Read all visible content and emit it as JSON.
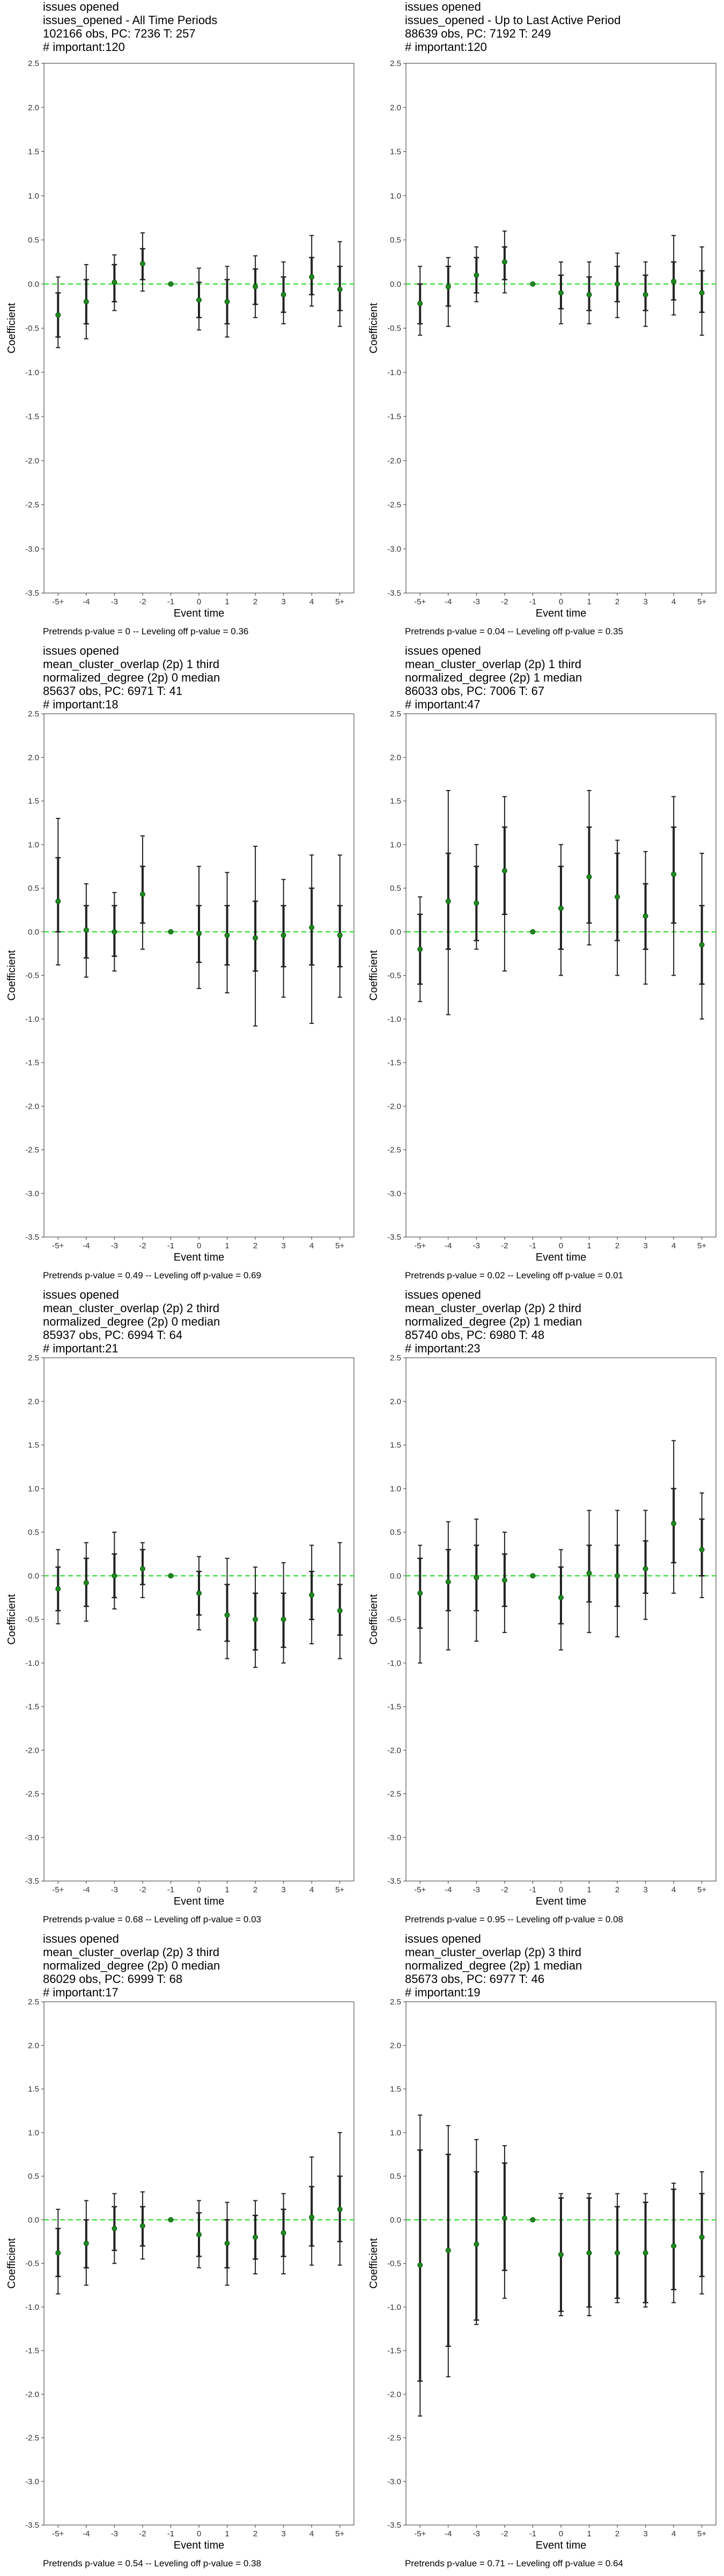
{
  "colors": {
    "zero_line": "#33dd33",
    "point": "#1f8a1f",
    "errorbar": "#222222",
    "axis": "#333333",
    "text": "#000000",
    "frame": "#555555"
  },
  "chart_data": [
    {
      "type": "scatter",
      "subtitle_lines": [
        "issues opened",
        "issues_opened - All Time Periods",
        "102166 obs, PC: 7236 T: 257",
        "# important:120"
      ],
      "xlabel": "Event time",
      "ylabel": "Coefficient",
      "ylim": [
        -3.5,
        2.5
      ],
      "yticks": [
        "2.5",
        "2.0",
        "1.5",
        "1.0",
        "0.5",
        "0.0",
        "-0.5",
        "-1.0",
        "-1.5",
        "-2.0",
        "-2.5",
        "-3.0",
        "-3.5"
      ],
      "categories": [
        "-5+",
        "-4",
        "-3",
        "-2",
        "-1",
        "0",
        "1",
        "2",
        "3",
        "4",
        "5+"
      ],
      "estimates": [
        -0.35,
        -0.2,
        0.02,
        0.23,
        0.0,
        -0.18,
        -0.2,
        -0.03,
        -0.12,
        0.08,
        -0.06
      ],
      "ci_inner": [
        [
          -0.6,
          -0.1
        ],
        [
          -0.45,
          0.05
        ],
        [
          -0.2,
          0.22
        ],
        [
          0.05,
          0.4
        ],
        [
          0.0,
          0.0
        ],
        [
          -0.38,
          0.02
        ],
        [
          -0.45,
          0.05
        ],
        [
          -0.23,
          0.17
        ],
        [
          -0.32,
          0.08
        ],
        [
          -0.12,
          0.3
        ],
        [
          -0.3,
          0.2
        ]
      ],
      "ci_outer": [
        [
          -0.72,
          0.08
        ],
        [
          -0.62,
          0.22
        ],
        [
          -0.3,
          0.33
        ],
        [
          -0.08,
          0.58
        ],
        [
          0.0,
          0.0
        ],
        [
          -0.52,
          0.18
        ],
        [
          -0.6,
          0.2
        ],
        [
          -0.38,
          0.32
        ],
        [
          -0.45,
          0.25
        ],
        [
          -0.25,
          0.55
        ],
        [
          -0.48,
          0.48
        ]
      ],
      "reference_line": 0,
      "footer": "Pretrends p-value = 0 -- Leveling off p-value = 0.36"
    },
    {
      "type": "scatter",
      "subtitle_lines": [
        "issues opened",
        "issues_opened - Up to Last Active Period",
        "88639 obs, PC: 7192 T: 249",
        "# important:120"
      ],
      "xlabel": "Event time",
      "ylabel": "Coefficient",
      "ylim": [
        -3.5,
        2.5
      ],
      "yticks": [
        "2.5",
        "2.0",
        "1.5",
        "1.0",
        "0.5",
        "0.0",
        "-0.5",
        "-1.0",
        "-1.5",
        "-2.0",
        "-2.5",
        "-3.0",
        "-3.5"
      ],
      "categories": [
        "-5+",
        "-4",
        "-3",
        "-2",
        "-1",
        "0",
        "1",
        "2",
        "3",
        "4",
        "5+"
      ],
      "estimates": [
        -0.22,
        -0.03,
        0.1,
        0.25,
        0.0,
        -0.1,
        -0.12,
        0.0,
        -0.12,
        0.03,
        -0.1
      ],
      "ci_inner": [
        [
          -0.45,
          0.0
        ],
        [
          -0.25,
          0.2
        ],
        [
          -0.1,
          0.3
        ],
        [
          0.05,
          0.42
        ],
        [
          0.0,
          0.0
        ],
        [
          -0.28,
          0.1
        ],
        [
          -0.3,
          0.08
        ],
        [
          -0.2,
          0.2
        ],
        [
          -0.3,
          0.1
        ],
        [
          -0.18,
          0.25
        ],
        [
          -0.32,
          0.15
        ]
      ],
      "ci_outer": [
        [
          -0.58,
          0.2
        ],
        [
          -0.48,
          0.3
        ],
        [
          -0.2,
          0.42
        ],
        [
          -0.1,
          0.6
        ],
        [
          0.0,
          0.0
        ],
        [
          -0.45,
          0.25
        ],
        [
          -0.45,
          0.25
        ],
        [
          -0.38,
          0.35
        ],
        [
          -0.48,
          0.25
        ],
        [
          -0.35,
          0.55
        ],
        [
          -0.58,
          0.42
        ]
      ],
      "reference_line": 0,
      "footer": "Pretrends p-value = 0.04 -- Leveling off p-value = 0.35"
    },
    {
      "type": "scatter",
      "subtitle_lines": [
        "issues opened",
        "mean_cluster_overlap (2p) 1 third",
        "normalized_degree (2p) 0 median",
        "85637 obs, PC: 6971 T: 41",
        "# important:18"
      ],
      "xlabel": "Event time",
      "ylabel": "Coefficient",
      "ylim": [
        -3.5,
        2.5
      ],
      "yticks": [
        "2.5",
        "2.0",
        "1.5",
        "1.0",
        "0.5",
        "0.0",
        "-0.5",
        "-1.0",
        "-1.5",
        "-2.0",
        "-2.5",
        "-3.0",
        "-3.5"
      ],
      "categories": [
        "-5+",
        "-4",
        "-3",
        "-2",
        "-1",
        "0",
        "1",
        "2",
        "3",
        "4",
        "5+"
      ],
      "estimates": [
        0.35,
        0.02,
        0.0,
        0.43,
        0.0,
        -0.02,
        -0.04,
        -0.07,
        -0.04,
        0.05,
        -0.04
      ],
      "ci_inner": [
        [
          0.0,
          0.85
        ],
        [
          -0.3,
          0.3
        ],
        [
          -0.28,
          0.3
        ],
        [
          0.1,
          0.75
        ],
        [
          0.0,
          0.0
        ],
        [
          -0.35,
          0.3
        ],
        [
          -0.38,
          0.3
        ],
        [
          -0.45,
          0.35
        ],
        [
          -0.4,
          0.3
        ],
        [
          -0.38,
          0.5
        ],
        [
          -0.4,
          0.3
        ]
      ],
      "ci_outer": [
        [
          -0.38,
          1.3
        ],
        [
          -0.52,
          0.55
        ],
        [
          -0.45,
          0.45
        ],
        [
          -0.2,
          1.1
        ],
        [
          0.0,
          0.0
        ],
        [
          -0.65,
          0.75
        ],
        [
          -0.7,
          0.68
        ],
        [
          -1.08,
          0.98
        ],
        [
          -0.75,
          0.6
        ],
        [
          -1.05,
          0.88
        ],
        [
          -0.75,
          0.88
        ]
      ],
      "reference_line": 0,
      "footer": "Pretrends p-value = 0.49 -- Leveling off p-value = 0.69"
    },
    {
      "type": "scatter",
      "subtitle_lines": [
        "issues opened",
        "mean_cluster_overlap (2p) 1 third",
        "normalized_degree (2p) 1 median",
        "86033 obs, PC: 7006 T: 67",
        "# important:47"
      ],
      "xlabel": "Event time",
      "ylabel": "Coefficient",
      "ylim": [
        -3.5,
        2.5
      ],
      "yticks": [
        "2.5",
        "2.0",
        "1.5",
        "1.0",
        "0.5",
        "0.0",
        "-0.5",
        "-1.0",
        "-1.5",
        "-2.0",
        "-2.5",
        "-3.0",
        "-3.5"
      ],
      "categories": [
        "-5+",
        "-4",
        "-3",
        "-2",
        "-1",
        "0",
        "1",
        "2",
        "3",
        "4",
        "5+"
      ],
      "estimates": [
        -0.2,
        0.35,
        0.33,
        0.7,
        0.0,
        0.27,
        0.63,
        0.4,
        0.18,
        0.66,
        -0.15
      ],
      "ci_inner": [
        [
          -0.6,
          0.2
        ],
        [
          -0.2,
          0.9
        ],
        [
          -0.1,
          0.75
        ],
        [
          0.2,
          1.2
        ],
        [
          0.0,
          0.0
        ],
        [
          -0.2,
          0.75
        ],
        [
          0.1,
          1.2
        ],
        [
          -0.1,
          0.9
        ],
        [
          -0.2,
          0.55
        ],
        [
          0.1,
          1.2
        ],
        [
          -0.6,
          0.3
        ]
      ],
      "ci_outer": [
        [
          -0.8,
          0.4
        ],
        [
          -0.95,
          1.62
        ],
        [
          -0.2,
          1.0
        ],
        [
          -0.45,
          1.55
        ],
        [
          0.0,
          0.0
        ],
        [
          -0.5,
          1.0
        ],
        [
          -0.15,
          1.62
        ],
        [
          -0.5,
          1.05
        ],
        [
          -0.6,
          0.92
        ],
        [
          -0.5,
          1.55
        ],
        [
          -1.0,
          0.9
        ]
      ],
      "reference_line": 0,
      "footer": "Pretrends p-value = 0.02 -- Leveling off p-value = 0.01"
    },
    {
      "type": "scatter",
      "subtitle_lines": [
        "issues opened",
        "mean_cluster_overlap (2p) 2 third",
        "normalized_degree (2p) 0 median",
        "85937 obs, PC: 6994 T: 64",
        "# important:21"
      ],
      "xlabel": "Event time",
      "ylabel": "Coefficient",
      "ylim": [
        -3.5,
        2.5
      ],
      "yticks": [
        "2.5",
        "2.0",
        "1.5",
        "1.0",
        "0.5",
        "0.0",
        "-0.5",
        "-1.0",
        "-1.5",
        "-2.0",
        "-2.5",
        "-3.0",
        "-3.5"
      ],
      "categories": [
        "-5+",
        "-4",
        "-3",
        "-2",
        "-1",
        "0",
        "1",
        "2",
        "3",
        "4",
        "5+"
      ],
      "estimates": [
        -0.15,
        -0.08,
        0.0,
        0.08,
        0.0,
        -0.2,
        -0.45,
        -0.5,
        -0.5,
        -0.22,
        -0.4
      ],
      "ci_inner": [
        [
          -0.4,
          0.1
        ],
        [
          -0.35,
          0.2
        ],
        [
          -0.25,
          0.25
        ],
        [
          -0.1,
          0.3
        ],
        [
          0.0,
          0.0
        ],
        [
          -0.45,
          0.05
        ],
        [
          -0.75,
          -0.1
        ],
        [
          -0.85,
          -0.2
        ],
        [
          -0.82,
          -0.2
        ],
        [
          -0.5,
          0.05
        ],
        [
          -0.68,
          -0.1
        ]
      ],
      "ci_outer": [
        [
          -0.55,
          0.3
        ],
        [
          -0.52,
          0.38
        ],
        [
          -0.38,
          0.5
        ],
        [
          -0.25,
          0.38
        ],
        [
          0.0,
          0.0
        ],
        [
          -0.62,
          0.22
        ],
        [
          -0.95,
          0.2
        ],
        [
          -1.05,
          0.1
        ],
        [
          -1.0,
          0.15
        ],
        [
          -0.78,
          0.35
        ],
        [
          -0.95,
          0.38
        ]
      ],
      "reference_line": 0,
      "footer": "Pretrends p-value = 0.68 -- Leveling off p-value = 0.03"
    },
    {
      "type": "scatter",
      "subtitle_lines": [
        "issues opened",
        "mean_cluster_overlap (2p) 2 third",
        "normalized_degree (2p) 1 median",
        "85740 obs, PC: 6980 T: 48",
        "# important:23"
      ],
      "xlabel": "Event time",
      "ylabel": "Coefficient",
      "ylim": [
        -3.5,
        2.5
      ],
      "yticks": [
        "2.5",
        "2.0",
        "1.5",
        "1.0",
        "0.5",
        "0.0",
        "-0.5",
        "-1.0",
        "-1.5",
        "-2.0",
        "-2.5",
        "-3.0",
        "-3.5"
      ],
      "categories": [
        "-5+",
        "-4",
        "-3",
        "-2",
        "-1",
        "0",
        "1",
        "2",
        "3",
        "4",
        "5+"
      ],
      "estimates": [
        -0.2,
        -0.07,
        -0.02,
        -0.05,
        0.0,
        -0.25,
        0.03,
        0.0,
        0.08,
        0.6,
        0.3
      ],
      "ci_inner": [
        [
          -0.6,
          0.2
        ],
        [
          -0.4,
          0.3
        ],
        [
          -0.4,
          0.35
        ],
        [
          -0.35,
          0.25
        ],
        [
          0.0,
          0.0
        ],
        [
          -0.55,
          0.1
        ],
        [
          -0.3,
          0.35
        ],
        [
          -0.35,
          0.35
        ],
        [
          -0.2,
          0.4
        ],
        [
          0.15,
          1.0
        ],
        [
          0.0,
          0.65
        ]
      ],
      "ci_outer": [
        [
          -1.0,
          0.35
        ],
        [
          -0.85,
          0.62
        ],
        [
          -0.75,
          0.65
        ],
        [
          -0.65,
          0.5
        ],
        [
          0.0,
          0.0
        ],
        [
          -0.85,
          0.3
        ],
        [
          -0.65,
          0.75
        ],
        [
          -0.7,
          0.75
        ],
        [
          -0.5,
          0.75
        ],
        [
          -0.2,
          1.55
        ],
        [
          -0.25,
          0.95
        ]
      ],
      "reference_line": 0,
      "footer": "Pretrends p-value = 0.95 -- Leveling off p-value = 0.08"
    },
    {
      "type": "scatter",
      "subtitle_lines": [
        "issues opened",
        "mean_cluster_overlap (2p) 3 third",
        "normalized_degree (2p) 0 median",
        "86029 obs, PC: 6999 T: 68",
        "# important:17"
      ],
      "xlabel": "Event time",
      "ylabel": "Coefficient",
      "ylim": [
        -3.5,
        2.5
      ],
      "yticks": [
        "2.5",
        "2.0",
        "1.5",
        "1.0",
        "0.5",
        "0.0",
        "-0.5",
        "-1.0",
        "-1.5",
        "-2.0",
        "-2.5",
        "-3.0",
        "-3.5"
      ],
      "categories": [
        "-5+",
        "-4",
        "-3",
        "-2",
        "-1",
        "0",
        "1",
        "2",
        "3",
        "4",
        "5+"
      ],
      "estimates": [
        -0.38,
        -0.27,
        -0.1,
        -0.07,
        0.0,
        -0.17,
        -0.27,
        -0.2,
        -0.15,
        0.03,
        0.12
      ],
      "ci_inner": [
        [
          -0.65,
          -0.1
        ],
        [
          -0.55,
          0.0
        ],
        [
          -0.35,
          0.15
        ],
        [
          -0.3,
          0.15
        ],
        [
          0.0,
          0.0
        ],
        [
          -0.42,
          0.08
        ],
        [
          -0.55,
          0.0
        ],
        [
          -0.45,
          0.05
        ],
        [
          -0.42,
          0.12
        ],
        [
          -0.3,
          0.38
        ],
        [
          -0.25,
          0.5
        ]
      ],
      "ci_outer": [
        [
          -0.85,
          0.12
        ],
        [
          -0.75,
          0.22
        ],
        [
          -0.5,
          0.3
        ],
        [
          -0.45,
          0.32
        ],
        [
          0.0,
          0.0
        ],
        [
          -0.55,
          0.22
        ],
        [
          -0.75,
          0.2
        ],
        [
          -0.62,
          0.22
        ],
        [
          -0.62,
          0.3
        ],
        [
          -0.52,
          0.72
        ],
        [
          -0.52,
          1.0
        ]
      ],
      "reference_line": 0,
      "footer": "Pretrends p-value = 0.54 -- Leveling off p-value = 0.38"
    },
    {
      "type": "scatter",
      "subtitle_lines": [
        "issues opened",
        "mean_cluster_overlap (2p) 3 third",
        "normalized_degree (2p) 1 median",
        "85673 obs, PC: 6977 T: 46",
        "# important:19"
      ],
      "xlabel": "Event time",
      "ylabel": "Coefficient",
      "ylim": [
        -3.5,
        2.5
      ],
      "yticks": [
        "2.5",
        "2.0",
        "1.5",
        "1.0",
        "0.5",
        "0.0",
        "-0.5",
        "-1.0",
        "-1.5",
        "-2.0",
        "-2.5",
        "-3.0",
        "-3.5"
      ],
      "categories": [
        "-5+",
        "-4",
        "-3",
        "-2",
        "-1",
        "0",
        "1",
        "2",
        "3",
        "4",
        "5+"
      ],
      "estimates": [
        -0.52,
        -0.35,
        -0.28,
        0.02,
        0.0,
        -0.4,
        -0.38,
        -0.38,
        -0.38,
        -0.3,
        -0.2
      ],
      "ci_inner": [
        [
          -1.85,
          0.8
        ],
        [
          -1.45,
          0.75
        ],
        [
          -1.15,
          0.55
        ],
        [
          -0.58,
          0.65
        ],
        [
          0.0,
          0.0
        ],
        [
          -1.05,
          0.25
        ],
        [
          -1.0,
          0.25
        ],
        [
          -0.9,
          0.15
        ],
        [
          -0.95,
          0.2
        ],
        [
          -0.8,
          0.35
        ],
        [
          -0.65,
          0.3
        ]
      ],
      "ci_outer": [
        [
          -2.25,
          1.2
        ],
        [
          -1.8,
          1.08
        ],
        [
          -1.2,
          0.92
        ],
        [
          -0.9,
          0.85
        ],
        [
          0.0,
          0.0
        ],
        [
          -1.1,
          0.3
        ],
        [
          -1.1,
          0.3
        ],
        [
          -0.95,
          0.3
        ],
        [
          -1.0,
          0.3
        ],
        [
          -0.95,
          0.42
        ],
        [
          -0.85,
          0.55
        ]
      ],
      "reference_line": 0,
      "footer": "Pretrends p-value = 0.71 -- Leveling off p-value = 0.64"
    }
  ]
}
